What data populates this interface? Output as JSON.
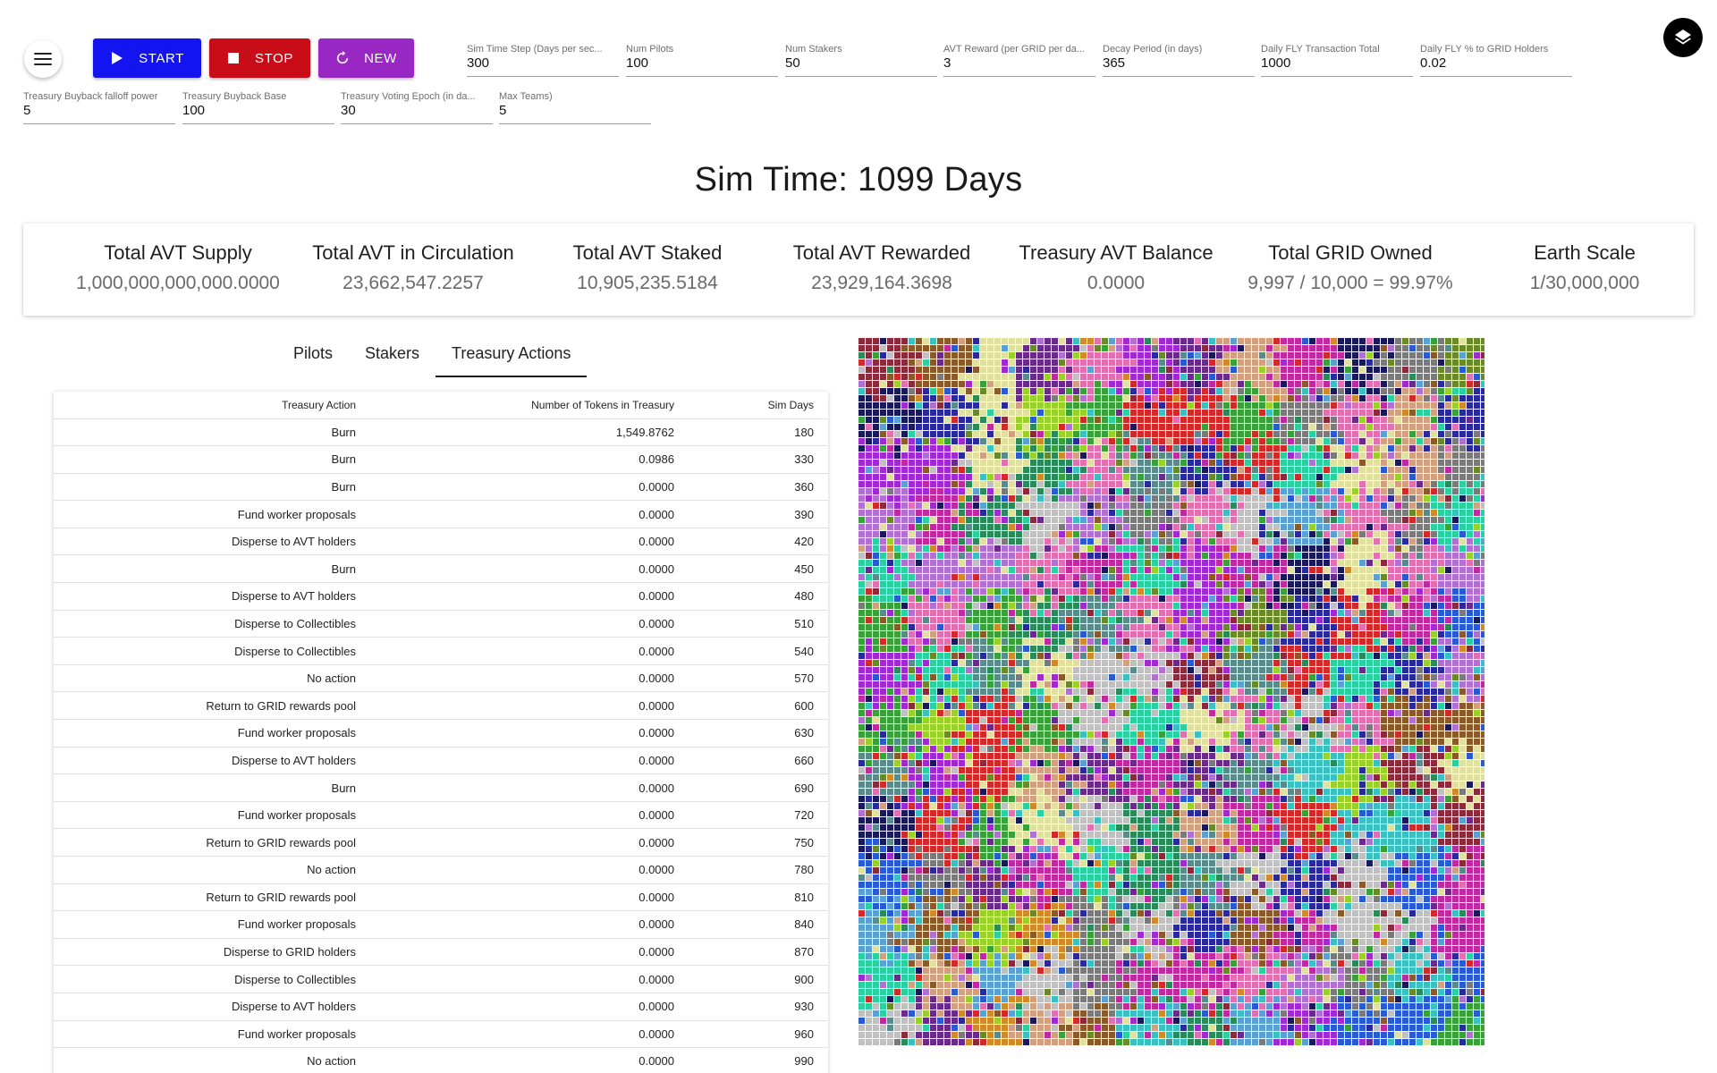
{
  "controls": {
    "start_label": "START",
    "stop_label": "STOP",
    "new_label": "NEW"
  },
  "params": [
    {
      "label": "Sim Time Step (Days per sec...",
      "value": "300"
    },
    {
      "label": "Num Pilots",
      "value": "100"
    },
    {
      "label": "Num Stakers",
      "value": "50"
    },
    {
      "label": "AVT Reward (per GRID per da...",
      "value": "3"
    },
    {
      "label": "Decay Period (in days)",
      "value": "365"
    },
    {
      "label": "Daily FLY Transaction Total",
      "value": "1000"
    },
    {
      "label": "Daily FLY % to GRID Holders",
      "value": "0.02"
    },
    {
      "label": "Treasury Buyback falloff power",
      "value": "5"
    },
    {
      "label": "Treasury Buyback Base",
      "value": "100"
    },
    {
      "label": "Treasury Voting Epoch (in da...",
      "value": "30"
    },
    {
      "label": "Max Teams)",
      "value": "5"
    }
  ],
  "sim_time": "Sim Time: 1099 Days",
  "stats": [
    {
      "title": "Total AVT Supply",
      "value": "1,000,000,000,000.0000"
    },
    {
      "title": "Total AVT in Circulation",
      "value": "23,662,547.2257"
    },
    {
      "title": "Total AVT Staked",
      "value": "10,905,235.5184"
    },
    {
      "title": "Total AVT Rewarded",
      "value": "23,929,164.3698"
    },
    {
      "title": "Treasury AVT Balance",
      "value": "0.0000"
    },
    {
      "title": "Total GRID Owned",
      "value": "9,997 / 10,000 = 99.97%"
    },
    {
      "title": "Earth Scale",
      "value": "1/30,000,000"
    }
  ],
  "tabs": [
    {
      "label": "Pilots"
    },
    {
      "label": "Stakers"
    },
    {
      "label": "Treasury Actions"
    }
  ],
  "table": {
    "headers": [
      "Treasury Action",
      "Number of Tokens in Treasury",
      "Sim Days"
    ],
    "rows": [
      [
        "Burn",
        "1,549.8762",
        "180"
      ],
      [
        "Burn",
        "0.0986",
        "330"
      ],
      [
        "Burn",
        "0.0000",
        "360"
      ],
      [
        "Fund worker proposals",
        "0.0000",
        "390"
      ],
      [
        "Disperse to AVT holders",
        "0.0000",
        "420"
      ],
      [
        "Burn",
        "0.0000",
        "450"
      ],
      [
        "Disperse to AVT holders",
        "0.0000",
        "480"
      ],
      [
        "Disperse to Collectibles",
        "0.0000",
        "510"
      ],
      [
        "Disperse to Collectibles",
        "0.0000",
        "540"
      ],
      [
        "No action",
        "0.0000",
        "570"
      ],
      [
        "Return to GRID rewards pool",
        "0.0000",
        "600"
      ],
      [
        "Fund worker proposals",
        "0.0000",
        "630"
      ],
      [
        "Disperse to AVT holders",
        "0.0000",
        "660"
      ],
      [
        "Burn",
        "0.0000",
        "690"
      ],
      [
        "Fund worker proposals",
        "0.0000",
        "720"
      ],
      [
        "Return to GRID rewards pool",
        "0.0000",
        "750"
      ],
      [
        "No action",
        "0.0000",
        "780"
      ],
      [
        "Return to GRID rewards pool",
        "0.0000",
        "810"
      ],
      [
        "Fund worker proposals",
        "0.0000",
        "840"
      ],
      [
        "Disperse to GRID holders",
        "0.0000",
        "870"
      ],
      [
        "Disperse to Collectibles",
        "0.0000",
        "900"
      ],
      [
        "Disperse to AVT holders",
        "0.0000",
        "930"
      ],
      [
        "Fund worker proposals",
        "0.0000",
        "960"
      ],
      [
        "No action",
        "0.0000",
        "990"
      ]
    ]
  },
  "grid_palette": [
    "#8a2a3a",
    "#6a8a2a",
    "#c02aa0",
    "#2a2a9a",
    "#3aa03a",
    "#7a7a7a",
    "#d02a2a",
    "#3ac0c0",
    "#b070d0",
    "#e070b0",
    "#2a8a5a",
    "#1a1a5a",
    "#9ad02a",
    "#c0c0c0",
    "#5aa0d0",
    "#d0a080",
    "#8a5a2a",
    "#2ad0a0",
    "#a02ad0",
    "#6a2a8a",
    "#d08a2a",
    "#2a5ad0",
    "#e0e0a0",
    "#5a8a8a"
  ]
}
